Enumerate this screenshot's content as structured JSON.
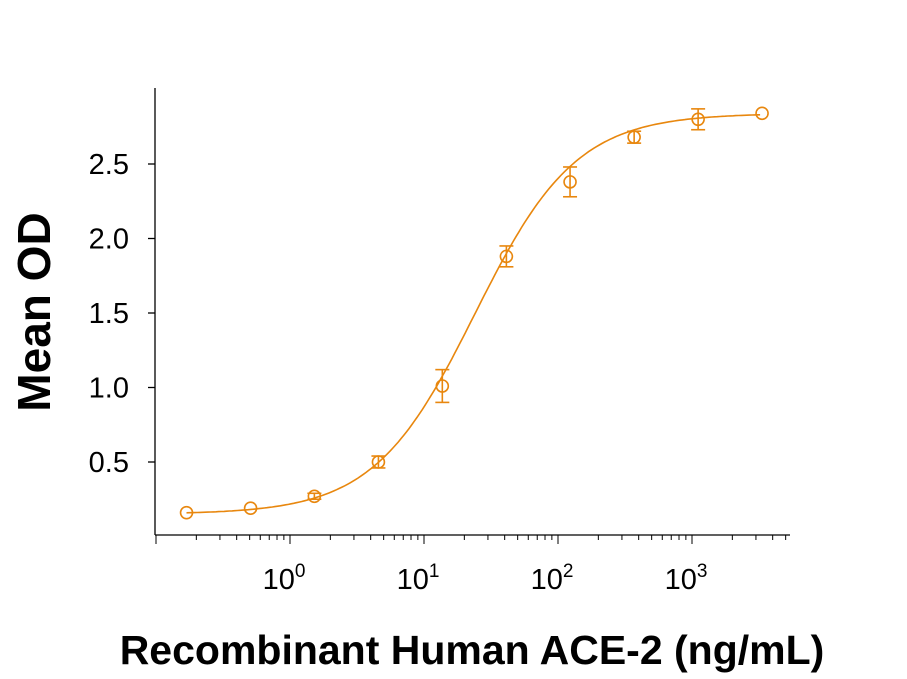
{
  "chart_data": {
    "type": "scatter",
    "title": "",
    "xlabel": "Recombinant Human ACE-2 (ng/mL)",
    "ylabel": "Mean OD",
    "xscale": "log",
    "xlim": [
      0.1,
      5400
    ],
    "ylim": [
      0,
      3.0
    ],
    "grid": false,
    "color": "#E8870E",
    "x_ticks": [
      {
        "base": "10",
        "exp": "0",
        "value": 1
      },
      {
        "base": "10",
        "exp": "1",
        "value": 10
      },
      {
        "base": "10",
        "exp": "2",
        "value": 100
      },
      {
        "base": "10",
        "exp": "3",
        "value": 1000
      }
    ],
    "y_ticks": [
      {
        "label": "0.5",
        "value": 0.5
      },
      {
        "label": "1.0",
        "value": 1.0
      },
      {
        "label": "1.5",
        "value": 1.5
      },
      {
        "label": "2.0",
        "value": 2.0
      },
      {
        "label": "2.5",
        "value": 2.5
      }
    ],
    "series": [
      {
        "name": "Mean OD",
        "x": [
          0.169,
          0.508,
          1.52,
          4.57,
          13.7,
          41.2,
          123,
          370,
          1111,
          3333
        ],
        "y": [
          0.16,
          0.19,
          0.27,
          0.5,
          1.01,
          1.88,
          2.38,
          2.68,
          2.8,
          2.84
        ],
        "error": [
          0.01,
          0.01,
          0.02,
          0.04,
          0.11,
          0.07,
          0.1,
          0.04,
          0.07,
          0.0
        ]
      }
    ],
    "fit": {
      "model": "4PL",
      "bottom": 0.15,
      "top": 2.84,
      "ec50": 24,
      "hill": 1.15
    }
  }
}
